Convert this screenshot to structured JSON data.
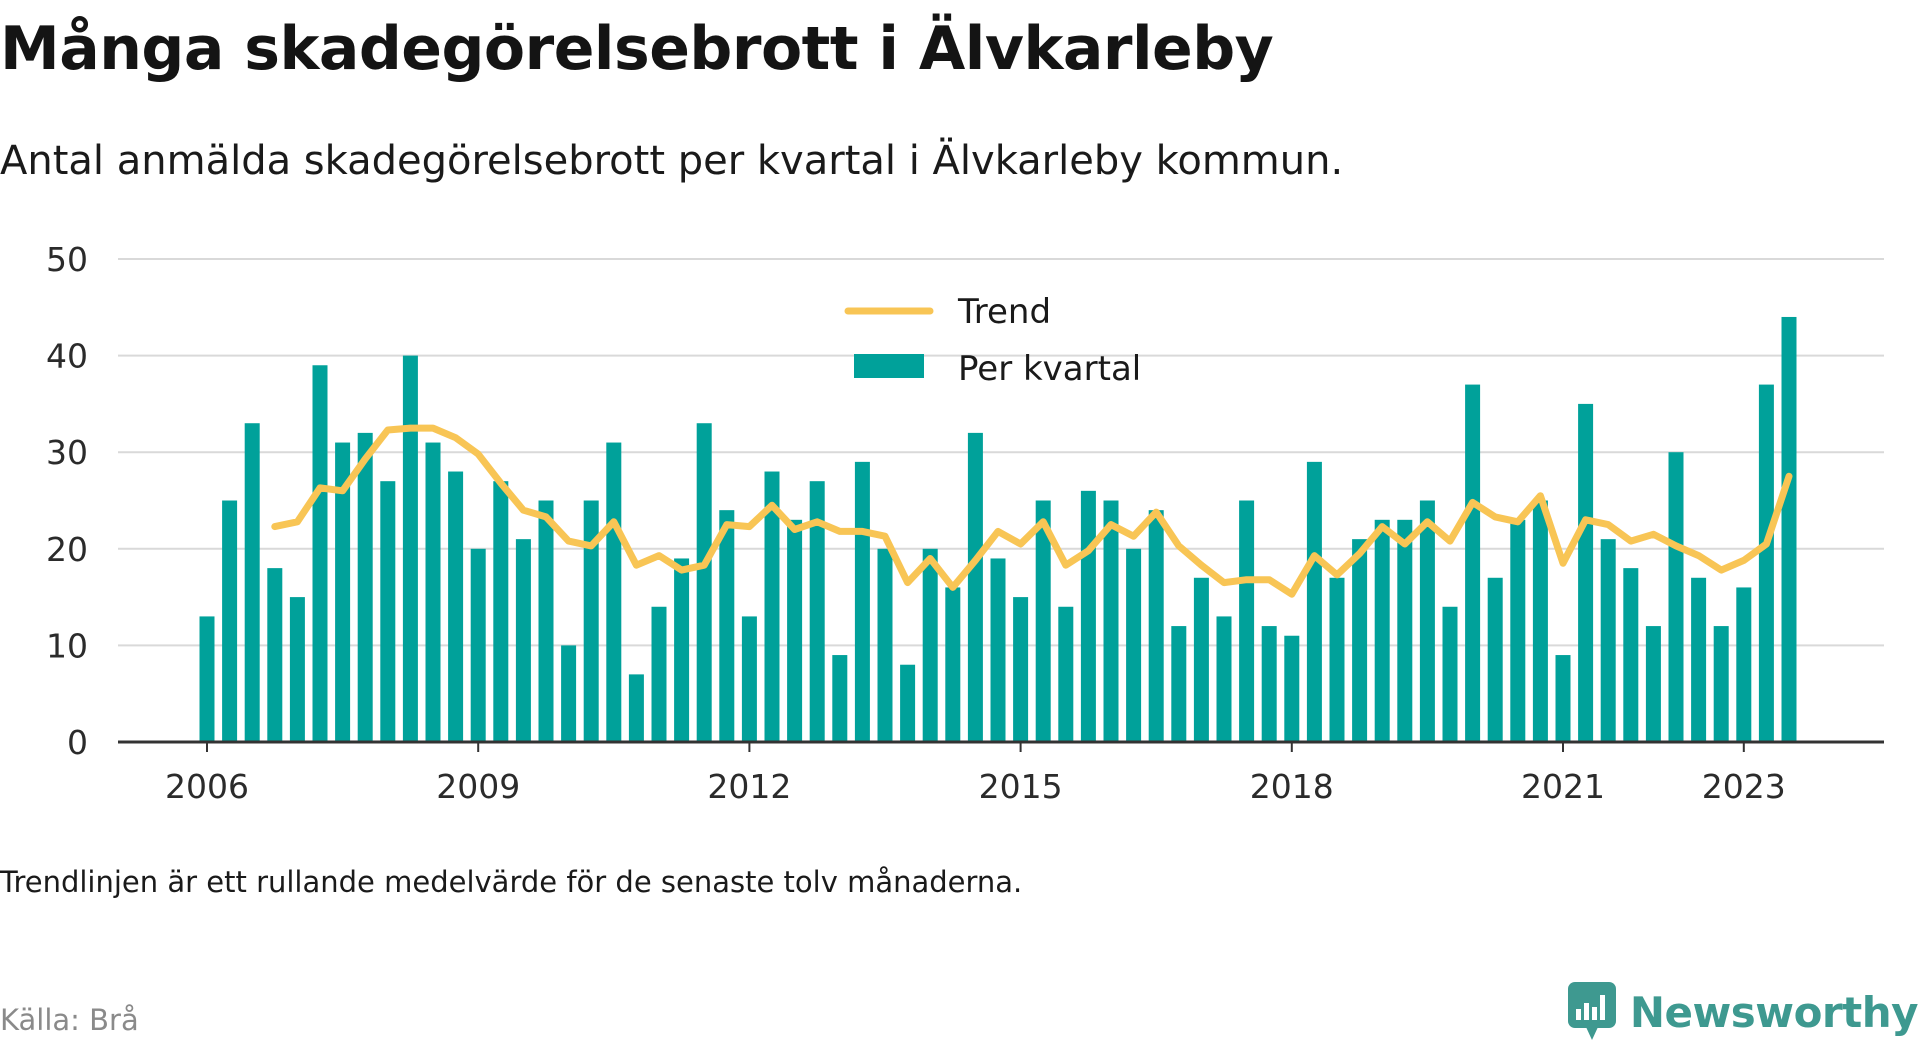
{
  "header": {
    "title": "Många skadegörelsebrott i Älvkarleby",
    "subtitle": "Antal anmälda skadegörelsebrott per kvartal i Älvkarleby kommun."
  },
  "footer": {
    "note": "Trendlinjen är ett rullande medelvärde för de senaste tolv månaderna.",
    "source": "Källa: Brå",
    "brand": "Newsworthy",
    "brand_icon": "newsworthy-logo-icon"
  },
  "colors": {
    "bars": "#00a19a",
    "trend": "#f8c555",
    "grid": "#d9d9d9",
    "axis": "#333333",
    "brand": "#3e9990"
  },
  "chart_data": {
    "type": "bar",
    "x_start": "2006 Q1",
    "x_step": "quarter",
    "x_ticks": [
      "2006",
      "2009",
      "2012",
      "2015",
      "2018",
      "2021",
      "2023"
    ],
    "ylim": [
      0,
      50
    ],
    "y_ticks": [
      0,
      10,
      20,
      30,
      40,
      50
    ],
    "grid": true,
    "legend_position": "top-center",
    "series": [
      {
        "name": "Per kvartal",
        "type": "bar",
        "values": [
          13,
          25,
          33,
          18,
          15,
          39,
          31,
          32,
          27,
          40,
          31,
          28,
          20,
          27,
          21,
          25,
          10,
          25,
          31,
          7,
          14,
          19,
          33,
          24,
          13,
          28,
          23,
          27,
          9,
          29,
          20,
          8,
          20,
          16,
          32,
          19,
          15,
          25,
          14,
          26,
          25,
          20,
          24,
          12,
          17,
          13,
          25,
          12,
          11,
          29,
          17,
          21,
          23,
          23,
          25,
          14,
          37,
          17,
          23,
          25,
          9,
          35,
          21,
          18,
          12,
          30,
          17,
          12,
          16,
          37,
          44
        ]
      },
      {
        "name": "Trend",
        "type": "line",
        "values": [
          null,
          null,
          null,
          22.3,
          22.8,
          26.3,
          26.0,
          29.3,
          32.3,
          32.5,
          32.5,
          31.5,
          29.8,
          26.8,
          24.0,
          23.3,
          20.8,
          20.3,
          22.8,
          18.3,
          19.3,
          17.8,
          18.3,
          22.5,
          22.3,
          24.5,
          22.0,
          22.8,
          21.8,
          21.8,
          21.3,
          16.5,
          19.0,
          16.0,
          18.8,
          21.8,
          20.5,
          22.8,
          18.3,
          19.8,
          22.5,
          21.3,
          23.8,
          20.3,
          18.3,
          16.5,
          16.8,
          16.8,
          15.3,
          19.3,
          17.3,
          19.5,
          22.3,
          20.5,
          22.8,
          20.8,
          24.8,
          23.3,
          22.8,
          25.5,
          18.5,
          23.0,
          22.5,
          20.8,
          21.5,
          20.3,
          19.3,
          17.8,
          18.8,
          20.5,
          27.5
        ]
      }
    ]
  }
}
